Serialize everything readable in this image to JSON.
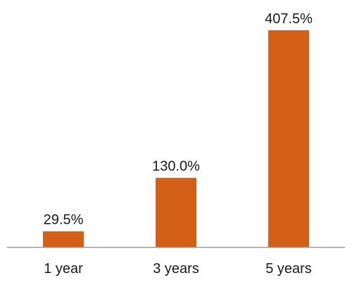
{
  "chart_data": {
    "type": "bar",
    "title": "",
    "xlabel": "",
    "ylabel": "",
    "categories": [
      "1 year",
      "3 years",
      "5 years"
    ],
    "values": [
      29.5,
      130.0,
      407.5
    ],
    "data_labels": [
      "29.5%",
      "130.0%",
      "407.5%"
    ],
    "ylim": [
      0,
      407.5
    ],
    "grid": false,
    "legend": "none",
    "colors": {
      "bar": "#d45f17",
      "axis": "#999999",
      "text": "#1a1a1a"
    }
  }
}
